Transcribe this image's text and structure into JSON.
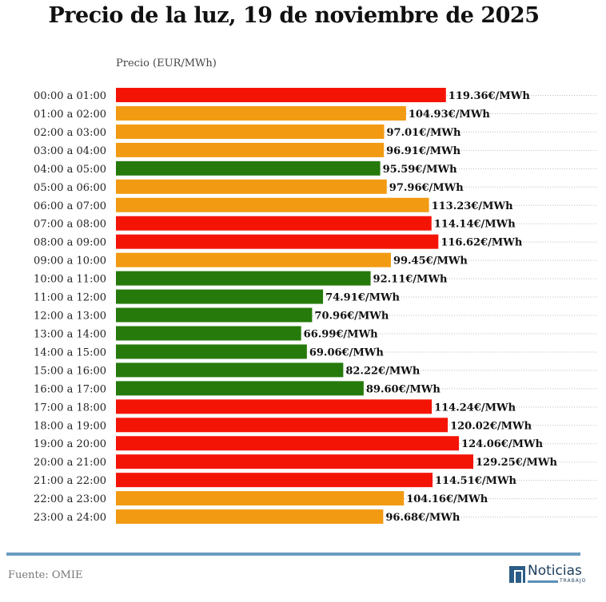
{
  "chart_data": {
    "type": "bar",
    "orientation": "horizontal",
    "title": "Precio de la luz, 19 de noviembre de 2025",
    "ylabel": "Precio (EUR/MWh)",
    "xlim": [
      0,
      130
    ],
    "grid": "dotted horizontal",
    "value_suffix": "€/MWh",
    "colors": {
      "high": "#f41406",
      "medium": "#f29a12",
      "low": "#267a0b"
    },
    "categories": [
      "00:00 a 01:00",
      "01:00 a 02:00",
      "02:00 a 03:00",
      "03:00 a 04:00",
      "04:00 a 05:00",
      "05:00 a 06:00",
      "06:00 a 07:00",
      "07:00 a 08:00",
      "08:00 a 09:00",
      "09:00 a 10:00",
      "10:00 a 11:00",
      "11:00 a 12:00",
      "12:00 a 13:00",
      "13:00 a 14:00",
      "14:00 a 15:00",
      "15:00 a 16:00",
      "16:00 a 17:00",
      "17:00 a 18:00",
      "18:00 a 19:00",
      "19:00 a 20:00",
      "20:00 a 21:00",
      "21:00 a 22:00",
      "22:00 a 23:00",
      "23:00 a 24:00"
    ],
    "values": [
      119.36,
      104.93,
      97.01,
      96.91,
      95.59,
      97.96,
      113.23,
      114.14,
      116.62,
      99.45,
      92.11,
      74.91,
      70.96,
      66.99,
      69.06,
      82.22,
      89.6,
      114.24,
      120.02,
      124.06,
      129.25,
      114.51,
      104.16,
      96.68
    ],
    "labels": [
      "119.36€/MWh",
      "104.93€/MWh",
      "97.01€/MWh",
      "96.91€/MWh",
      "95.59€/MWh",
      "97.96€/MWh",
      "113.23€/MWh",
      "114.14€/MWh",
      "116.62€/MWh",
      "99.45€/MWh",
      "92.11€/MWh",
      "74.91€/MWh",
      "70.96€/MWh",
      "66.99€/MWh",
      "69.06€/MWh",
      "82.22€/MWh",
      "89.60€/MWh",
      "114.24€/MWh",
      "120.02€/MWh",
      "124.06€/MWh",
      "129.25€/MWh",
      "114.51€/MWh",
      "104.16€/MWh",
      "96.68€/MWh"
    ],
    "levels": [
      "high",
      "medium",
      "medium",
      "medium",
      "low",
      "medium",
      "medium",
      "high",
      "high",
      "medium",
      "low",
      "low",
      "low",
      "low",
      "low",
      "low",
      "low",
      "high",
      "high",
      "high",
      "high",
      "high",
      "medium",
      "medium"
    ]
  },
  "footer": {
    "source": "Fuente: OMIE",
    "logo_name": "Noticias",
    "logo_sub": "TRABAJO"
  }
}
